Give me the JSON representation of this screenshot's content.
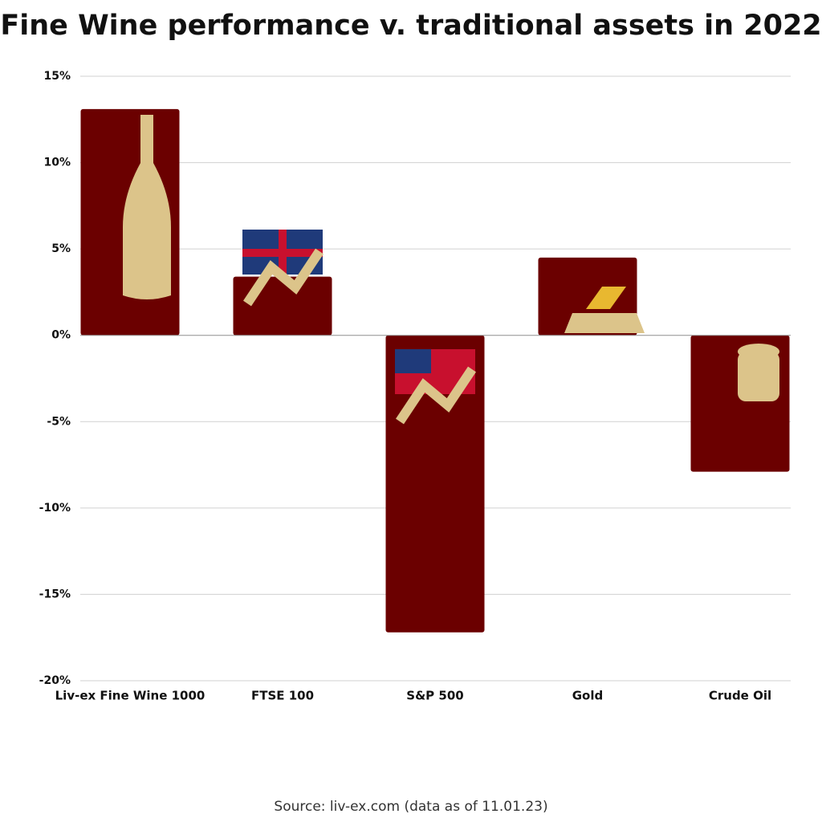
{
  "chart_data": {
    "type": "bar",
    "title": "Fine Wine performance v. traditional assets in 2022",
    "source": "Source: liv-ex.com (data as of 11.01.23)",
    "categories": [
      "Liv-ex Fine Wine 1000",
      "FTSE 100",
      "S&P 500",
      "Gold",
      "Crude Oil"
    ],
    "values": [
      13.1,
      3.4,
      -17.2,
      4.5,
      -7.9
    ],
    "color": "#6b0000",
    "ylim": [
      -20,
      15
    ],
    "yticks": [
      {
        "value": -20,
        "label": "-20%"
      },
      {
        "value": -15,
        "label": "-15%"
      },
      {
        "value": -10,
        "label": "-10%"
      },
      {
        "value": -5,
        "label": "-5%"
      },
      {
        "value": 0,
        "label": "0%"
      },
      {
        "value": 5,
        "label": "5%"
      },
      {
        "value": 10,
        "label": "10%"
      },
      {
        "value": 15,
        "label": "15%"
      }
    ],
    "grid": true
  }
}
